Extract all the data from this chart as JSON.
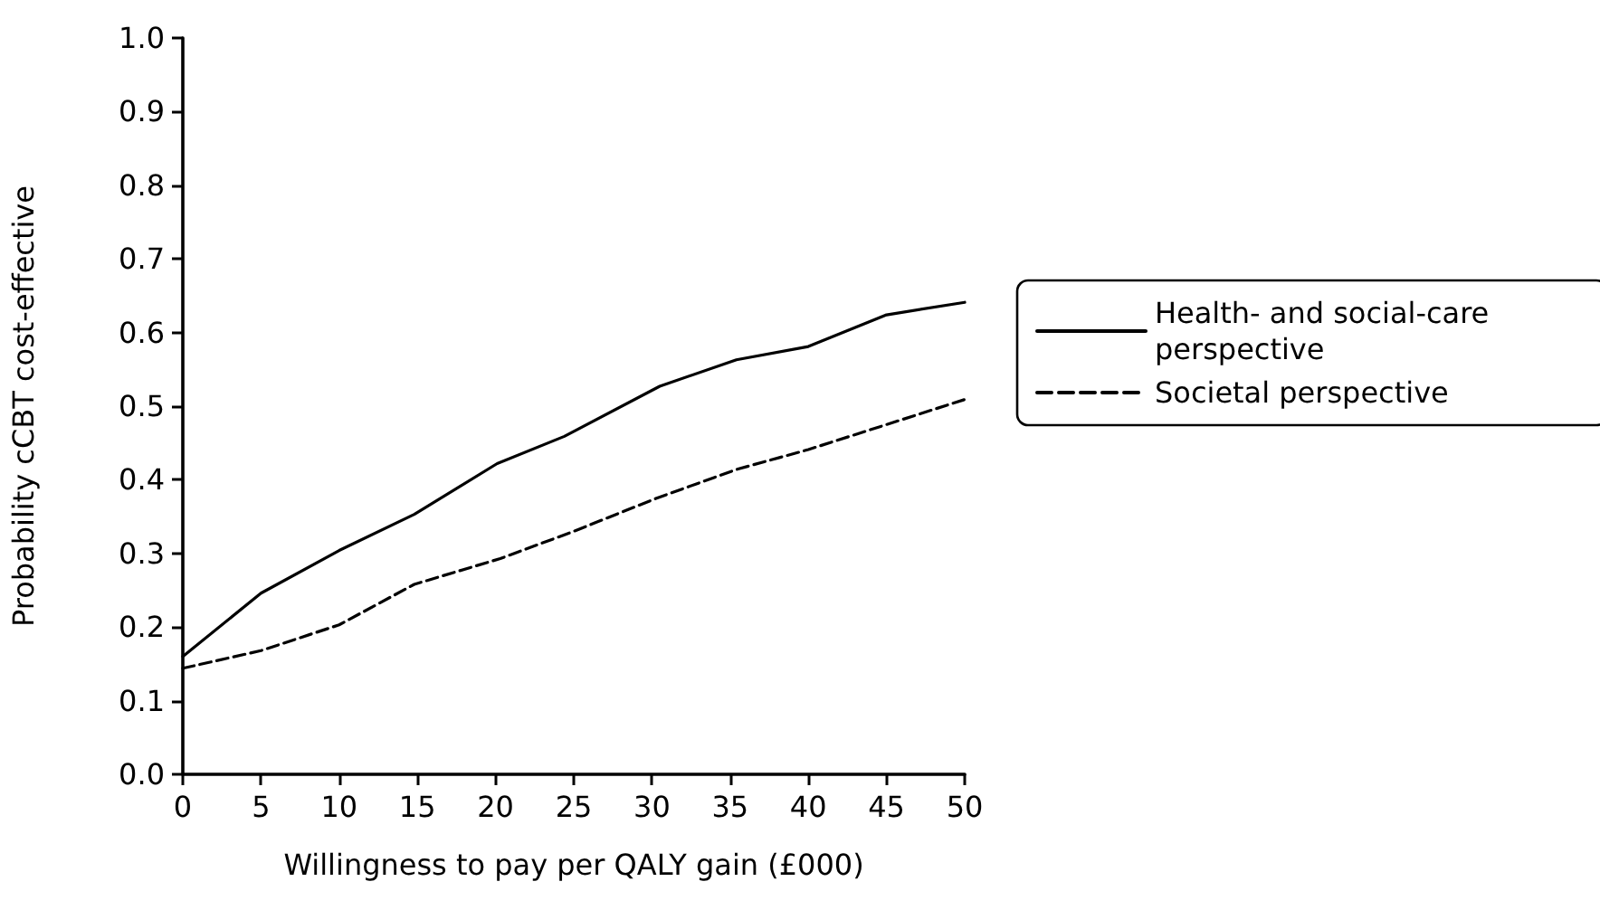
{
  "chart_data": {
    "type": "line",
    "xlabel": "Willingness to pay per QALY gain (£000)",
    "ylabel": "Probability cCBT cost-effective",
    "xlim": [
      0,
      50
    ],
    "xticks": [
      0,
      5,
      10,
      15,
      20,
      25,
      30,
      35,
      40,
      45,
      50
    ],
    "ylim": [
      0,
      1
    ],
    "yticks": [
      {
        "value": 0,
        "label": "0.0"
      },
      0.1,
      0.2,
      0.3,
      0.4,
      0.5,
      0.6,
      0.7,
      0.8,
      0.9,
      {
        "value": 1,
        "label": "1.0"
      }
    ],
    "grid": false,
    "legend": "right",
    "marker": "none",
    "series": [
      {
        "name": "Health- and social-care perspective",
        "color": "#000000",
        "line_style": "solid",
        "x": [
          0,
          5,
          10,
          14.8,
          20.1,
          24.4,
          30.5,
          35.4,
          40,
          45,
          50
        ],
        "values": [
          0.16,
          0.246,
          0.304,
          0.353,
          0.422,
          0.459,
          0.527,
          0.563,
          0.581,
          0.624,
          0.641
        ]
      },
      {
        "name": "Societal perspective",
        "color": "#000000",
        "line_style": "dashed",
        "x": [
          0,
          5,
          10,
          14.8,
          20.3,
          25,
          30.3,
          35.4,
          40,
          45,
          50
        ],
        "values": [
          0.144,
          0.168,
          0.203,
          0.258,
          0.293,
          0.33,
          0.375,
          0.414,
          0.441,
          0.475,
          0.509
        ]
      }
    ]
  }
}
